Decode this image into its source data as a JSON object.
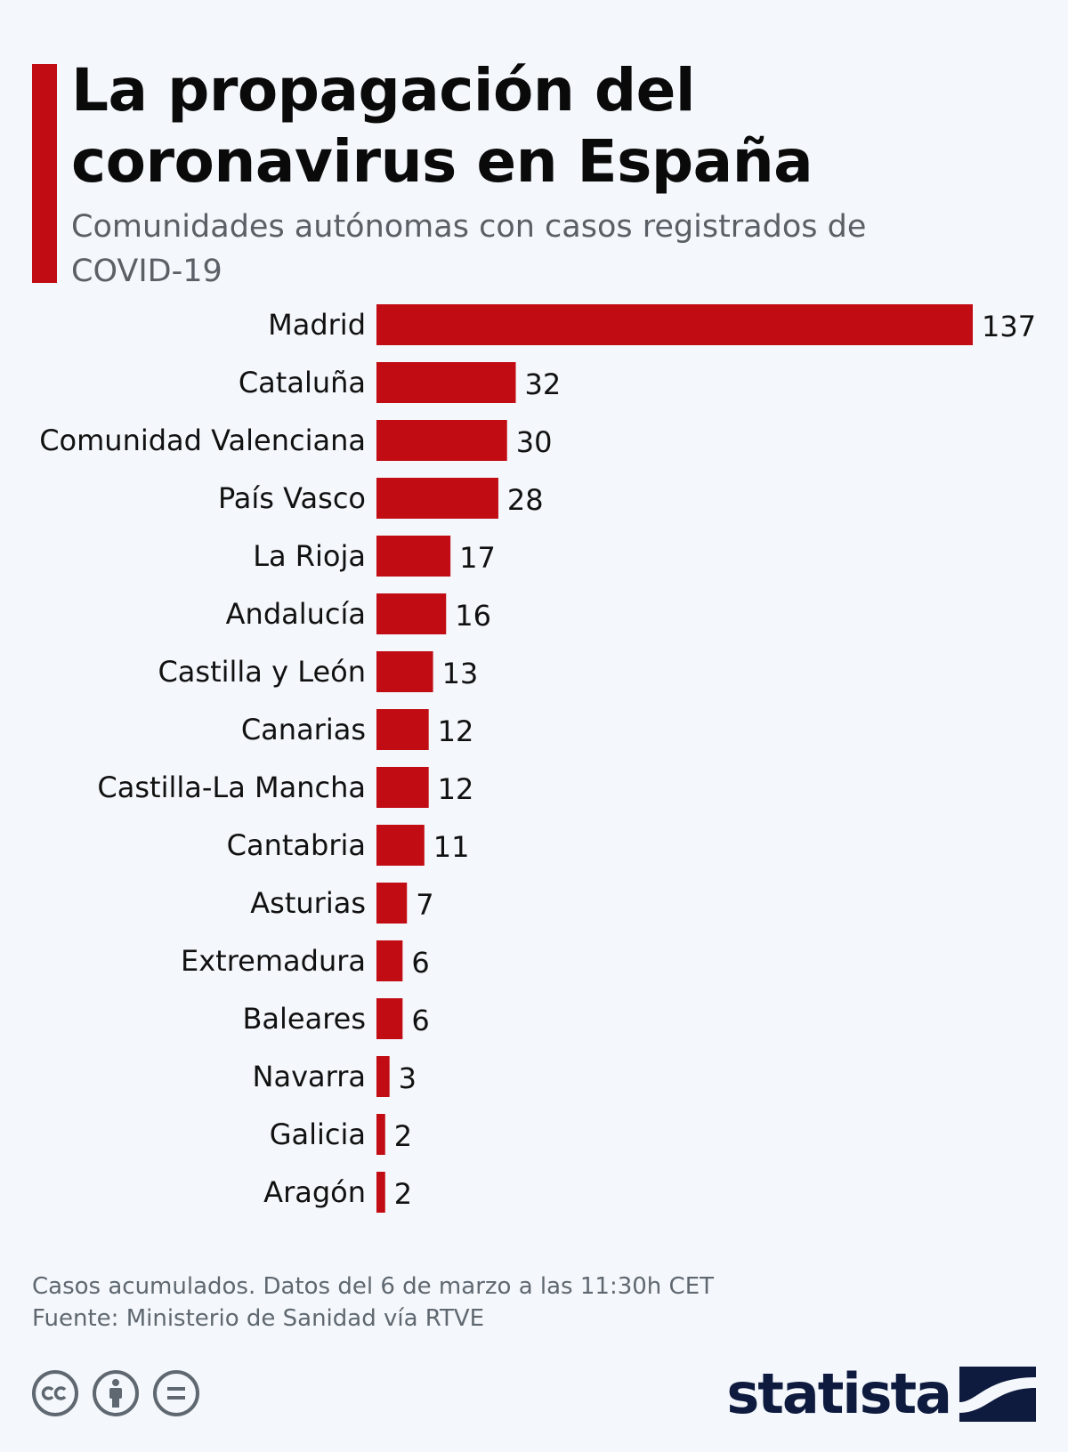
{
  "header": {
    "title": "La propagación del coronavirus en España",
    "subtitle": "Comunidades autónomas con casos registrados de COVID-19"
  },
  "chart_data": {
    "type": "bar",
    "orientation": "horizontal",
    "categories": [
      "Madrid",
      "Cataluña",
      "Comunidad Valenciana",
      "País Vasco",
      "La Rioja",
      "Andalucía",
      "Castilla y León",
      "Canarias",
      "Castilla-La Mancha",
      "Cantabria",
      "Asturias",
      "Extremadura",
      "Baleares",
      "Navarra",
      "Galicia",
      "Aragón"
    ],
    "values": [
      137,
      32,
      30,
      28,
      17,
      16,
      13,
      12,
      12,
      11,
      7,
      6,
      6,
      3,
      2,
      2
    ],
    "bar_color": "#c10c14",
    "xlim": [
      0,
      137
    ],
    "grid": false,
    "legend": "none",
    "data_labels": true
  },
  "footer": {
    "note": "Casos acumulados. Datos del 6 de marzo a las 11:30h CET",
    "source": "Fuente: Ministerio de Sanidad vía RTVE",
    "brand": "statista",
    "cc_icons": [
      "cc-icon",
      "attribution-icon",
      "no-derivatives-icon"
    ]
  },
  "colors": {
    "accent": "#c10c14",
    "background": "#f4f7fb",
    "brand": "#0e1b3f"
  }
}
